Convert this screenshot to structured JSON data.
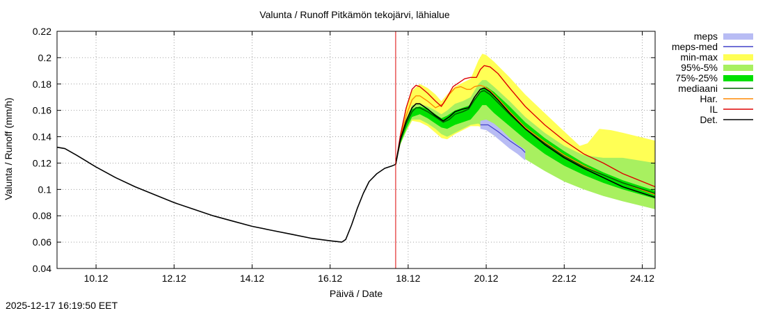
{
  "chart_data": {
    "type": "line",
    "title": "Valunta / Runoff  Pitkämön tekojärvi, lähialue",
    "xlabel": "Päivä / Date",
    "ylabel": "Valunta / Runoff (mm/h)",
    "x_unit": "days since 09.12 00:00",
    "xlim": [
      0.0,
      15.33
    ],
    "ylim": [
      0.04,
      0.22
    ],
    "yticks": [
      0.04,
      0.06,
      0.08,
      0.1,
      0.12,
      0.14,
      0.16,
      0.18,
      0.2,
      0.22
    ],
    "xticks": [
      {
        "x": 1.0,
        "label": "10.12"
      },
      {
        "x": 3.0,
        "label": "12.12"
      },
      {
        "x": 5.0,
        "label": "14.12"
      },
      {
        "x": 7.0,
        "label": "16.12"
      },
      {
        "x": 9.0,
        "label": "18.12"
      },
      {
        "x": 11.0,
        "label": "20.12"
      },
      {
        "x": 13.0,
        "label": "22.12"
      },
      {
        "x": 15.0,
        "label": "24.12"
      }
    ],
    "grid": true,
    "forecast_start_x": 8.68,
    "legend": [
      {
        "key": "meps",
        "label": "meps",
        "color": "#b8bcf4",
        "style": "band"
      },
      {
        "key": "meps_med",
        "label": "meps-med",
        "color": "#4040c8",
        "style": "line"
      },
      {
        "key": "minmax",
        "label": "min-max",
        "color": "#ffff55",
        "style": "band"
      },
      {
        "key": "p95_5",
        "label": "95%-5%",
        "color": "#a8f060",
        "style": "band"
      },
      {
        "key": "p75_25",
        "label": "75%-25%",
        "color": "#00e000",
        "style": "band"
      },
      {
        "key": "median",
        "label": "mediaani",
        "color": "#006000",
        "style": "line"
      },
      {
        "key": "har",
        "label": "Har.",
        "color": "#ff8800",
        "style": "line"
      },
      {
        "key": "il",
        "label": "IL",
        "color": "#dd0000",
        "style": "line"
      },
      {
        "key": "det",
        "label": "Det.",
        "color": "#000000",
        "style": "line"
      }
    ],
    "series": {
      "observed": [
        [
          0.0,
          0.132
        ],
        [
          0.2,
          0.131
        ],
        [
          0.5,
          0.126
        ],
        [
          1.0,
          0.117
        ],
        [
          1.5,
          0.109
        ],
        [
          2.0,
          0.102
        ],
        [
          2.5,
          0.096
        ],
        [
          3.0,
          0.09
        ],
        [
          3.5,
          0.085
        ],
        [
          4.0,
          0.08
        ],
        [
          4.5,
          0.076
        ],
        [
          5.0,
          0.072
        ],
        [
          5.5,
          0.069
        ],
        [
          6.0,
          0.066
        ],
        [
          6.5,
          0.063
        ],
        [
          7.0,
          0.061
        ],
        [
          7.3,
          0.06
        ],
        [
          7.4,
          0.062
        ],
        [
          7.55,
          0.073
        ],
        [
          7.7,
          0.086
        ],
        [
          7.85,
          0.097
        ],
        [
          8.0,
          0.106
        ],
        [
          8.2,
          0.112
        ],
        [
          8.4,
          0.116
        ],
        [
          8.6,
          0.118
        ],
        [
          8.68,
          0.119
        ]
      ],
      "det": [
        [
          8.68,
          0.119
        ],
        [
          8.8,
          0.138
        ],
        [
          8.95,
          0.152
        ],
        [
          9.1,
          0.162
        ],
        [
          9.2,
          0.165
        ],
        [
          9.3,
          0.165
        ],
        [
          9.5,
          0.161
        ],
        [
          9.7,
          0.156
        ],
        [
          9.9,
          0.152
        ],
        [
          10.05,
          0.155
        ],
        [
          10.2,
          0.159
        ],
        [
          10.4,
          0.161
        ],
        [
          10.55,
          0.162
        ],
        [
          10.7,
          0.17
        ],
        [
          10.85,
          0.176
        ],
        [
          10.95,
          0.177
        ],
        [
          11.1,
          0.174
        ],
        [
          11.3,
          0.168
        ],
        [
          11.6,
          0.158
        ],
        [
          12.0,
          0.146
        ],
        [
          12.5,
          0.134
        ],
        [
          13.0,
          0.124
        ],
        [
          13.5,
          0.116
        ],
        [
          14.0,
          0.109
        ],
        [
          14.5,
          0.102
        ],
        [
          15.33,
          0.094
        ]
      ],
      "median": [
        [
          8.68,
          0.119
        ],
        [
          8.8,
          0.137
        ],
        [
          8.95,
          0.15
        ],
        [
          9.1,
          0.159
        ],
        [
          9.2,
          0.162
        ],
        [
          9.3,
          0.162
        ],
        [
          9.5,
          0.159
        ],
        [
          9.7,
          0.155
        ],
        [
          9.9,
          0.151
        ],
        [
          10.05,
          0.153
        ],
        [
          10.2,
          0.157
        ],
        [
          10.4,
          0.159
        ],
        [
          10.55,
          0.161
        ],
        [
          10.7,
          0.168
        ],
        [
          10.85,
          0.174
        ],
        [
          10.95,
          0.175
        ],
        [
          11.1,
          0.172
        ],
        [
          11.3,
          0.166
        ],
        [
          11.6,
          0.157
        ],
        [
          12.0,
          0.146
        ],
        [
          12.5,
          0.135
        ],
        [
          13.0,
          0.125
        ],
        [
          13.5,
          0.117
        ],
        [
          14.0,
          0.111
        ],
        [
          14.5,
          0.105
        ],
        [
          15.33,
          0.097
        ]
      ],
      "har": [
        [
          8.68,
          0.119
        ],
        [
          8.8,
          0.139
        ],
        [
          8.95,
          0.156
        ],
        [
          9.1,
          0.168
        ],
        [
          9.2,
          0.171
        ],
        [
          9.3,
          0.171
        ],
        [
          9.5,
          0.167
        ],
        [
          9.7,
          0.162
        ],
        [
          9.9,
          0.165
        ],
        [
          10.05,
          0.172
        ],
        [
          10.2,
          0.177
        ],
        [
          10.35,
          0.178
        ],
        [
          10.5,
          0.176
        ],
        [
          10.6,
          0.176
        ],
        [
          10.7,
          0.178
        ],
        [
          10.85,
          0.179
        ],
        [
          10.95,
          0.178
        ],
        [
          11.1,
          0.175
        ],
        [
          11.3,
          0.169
        ],
        [
          11.6,
          0.159
        ],
        [
          12.0,
          0.147
        ],
        [
          12.5,
          0.136
        ],
        [
          13.0,
          0.126
        ],
        [
          13.5,
          0.118
        ],
        [
          14.0,
          0.111
        ],
        [
          14.5,
          0.105
        ],
        [
          15.33,
          0.096
        ]
      ],
      "il": [
        [
          8.68,
          0.119
        ],
        [
          8.8,
          0.141
        ],
        [
          8.95,
          0.162
        ],
        [
          9.1,
          0.176
        ],
        [
          9.2,
          0.179
        ],
        [
          9.3,
          0.178
        ],
        [
          9.5,
          0.173
        ],
        [
          9.7,
          0.167
        ],
        [
          9.85,
          0.163
        ],
        [
          10.0,
          0.17
        ],
        [
          10.15,
          0.178
        ],
        [
          10.3,
          0.181
        ],
        [
          10.45,
          0.184
        ],
        [
          10.6,
          0.185
        ],
        [
          10.75,
          0.185
        ],
        [
          10.85,
          0.191
        ],
        [
          10.95,
          0.194
        ],
        [
          11.1,
          0.193
        ],
        [
          11.3,
          0.188
        ],
        [
          11.6,
          0.177
        ],
        [
          12.0,
          0.163
        ],
        [
          12.5,
          0.149
        ],
        [
          13.0,
          0.137
        ],
        [
          13.5,
          0.127
        ],
        [
          14.0,
          0.12
        ],
        [
          14.5,
          0.112
        ],
        [
          15.33,
          0.102
        ]
      ],
      "meps_med": [
        [
          10.85,
          0.149
        ],
        [
          11.05,
          0.149
        ],
        [
          11.3,
          0.144
        ],
        [
          11.6,
          0.137
        ],
        [
          11.9,
          0.131
        ],
        [
          12.0,
          0.128
        ]
      ]
    },
    "bands": {
      "minmax": {
        "x": [
          8.68,
          8.8,
          8.95,
          9.1,
          9.3,
          9.5,
          9.7,
          9.85,
          10.0,
          10.2,
          10.4,
          10.6,
          10.8,
          10.9,
          11.0,
          11.2,
          11.6,
          12.0,
          12.5,
          13.0,
          13.4,
          13.6,
          13.9,
          14.2,
          14.5,
          15.33
        ],
        "lo": [
          0.119,
          0.134,
          0.144,
          0.152,
          0.151,
          0.148,
          0.143,
          0.139,
          0.138,
          0.142,
          0.145,
          0.148,
          0.148,
          0.147,
          0.145,
          0.141,
          0.132,
          0.124,
          0.116,
          0.109,
          0.104,
          0.102,
          0.099,
          0.097,
          0.095,
          0.09
        ],
        "hi": [
          0.119,
          0.143,
          0.162,
          0.175,
          0.18,
          0.177,
          0.172,
          0.167,
          0.172,
          0.178,
          0.181,
          0.184,
          0.198,
          0.203,
          0.202,
          0.197,
          0.185,
          0.172,
          0.158,
          0.144,
          0.133,
          0.135,
          0.146,
          0.145,
          0.143,
          0.137
        ]
      },
      "p95_5": {
        "x": [
          8.68,
          8.8,
          8.95,
          9.1,
          9.3,
          9.5,
          9.7,
          9.85,
          10.0,
          10.2,
          10.4,
          10.6,
          10.8,
          10.9,
          11.0,
          11.2,
          11.6,
          12.0,
          12.5,
          13.0,
          13.5,
          14.0,
          14.5,
          15.33
        ],
        "lo": [
          0.119,
          0.134,
          0.144,
          0.153,
          0.153,
          0.15,
          0.146,
          0.142,
          0.14,
          0.143,
          0.146,
          0.149,
          0.15,
          0.148,
          0.146,
          0.141,
          0.132,
          0.123,
          0.114,
          0.106,
          0.1,
          0.095,
          0.091,
          0.085
        ],
        "hi": [
          0.119,
          0.14,
          0.154,
          0.164,
          0.165,
          0.163,
          0.16,
          0.157,
          0.16,
          0.165,
          0.167,
          0.17,
          0.18,
          0.183,
          0.183,
          0.178,
          0.167,
          0.155,
          0.143,
          0.133,
          0.126,
          0.124,
          0.124,
          0.12
        ]
      },
      "p75_25": {
        "x": [
          8.68,
          8.8,
          8.95,
          9.1,
          9.3,
          9.5,
          9.7,
          9.85,
          10.0,
          10.2,
          10.4,
          10.6,
          10.8,
          10.9,
          11.0,
          11.2,
          11.6,
          12.0,
          12.5,
          13.0,
          13.5,
          14.0,
          14.5,
          15.33
        ],
        "lo": [
          0.119,
          0.135,
          0.146,
          0.155,
          0.157,
          0.154,
          0.15,
          0.147,
          0.146,
          0.149,
          0.151,
          0.153,
          0.16,
          0.164,
          0.164,
          0.158,
          0.148,
          0.138,
          0.127,
          0.118,
          0.111,
          0.105,
          0.1,
          0.093
        ],
        "hi": [
          0.119,
          0.138,
          0.151,
          0.161,
          0.163,
          0.161,
          0.157,
          0.154,
          0.156,
          0.16,
          0.162,
          0.164,
          0.172,
          0.177,
          0.178,
          0.174,
          0.163,
          0.151,
          0.139,
          0.129,
          0.12,
          0.113,
          0.107,
          0.099
        ]
      },
      "meps": {
        "x": [
          10.85,
          11.0,
          11.2,
          11.4,
          11.6,
          11.8,
          12.0
        ],
        "lo": [
          0.146,
          0.145,
          0.141,
          0.136,
          0.131,
          0.127,
          0.122
        ],
        "hi": [
          0.152,
          0.153,
          0.15,
          0.145,
          0.139,
          0.134,
          0.13
        ]
      }
    }
  },
  "timestamp": "2025-12-17 16:19:50 EET"
}
